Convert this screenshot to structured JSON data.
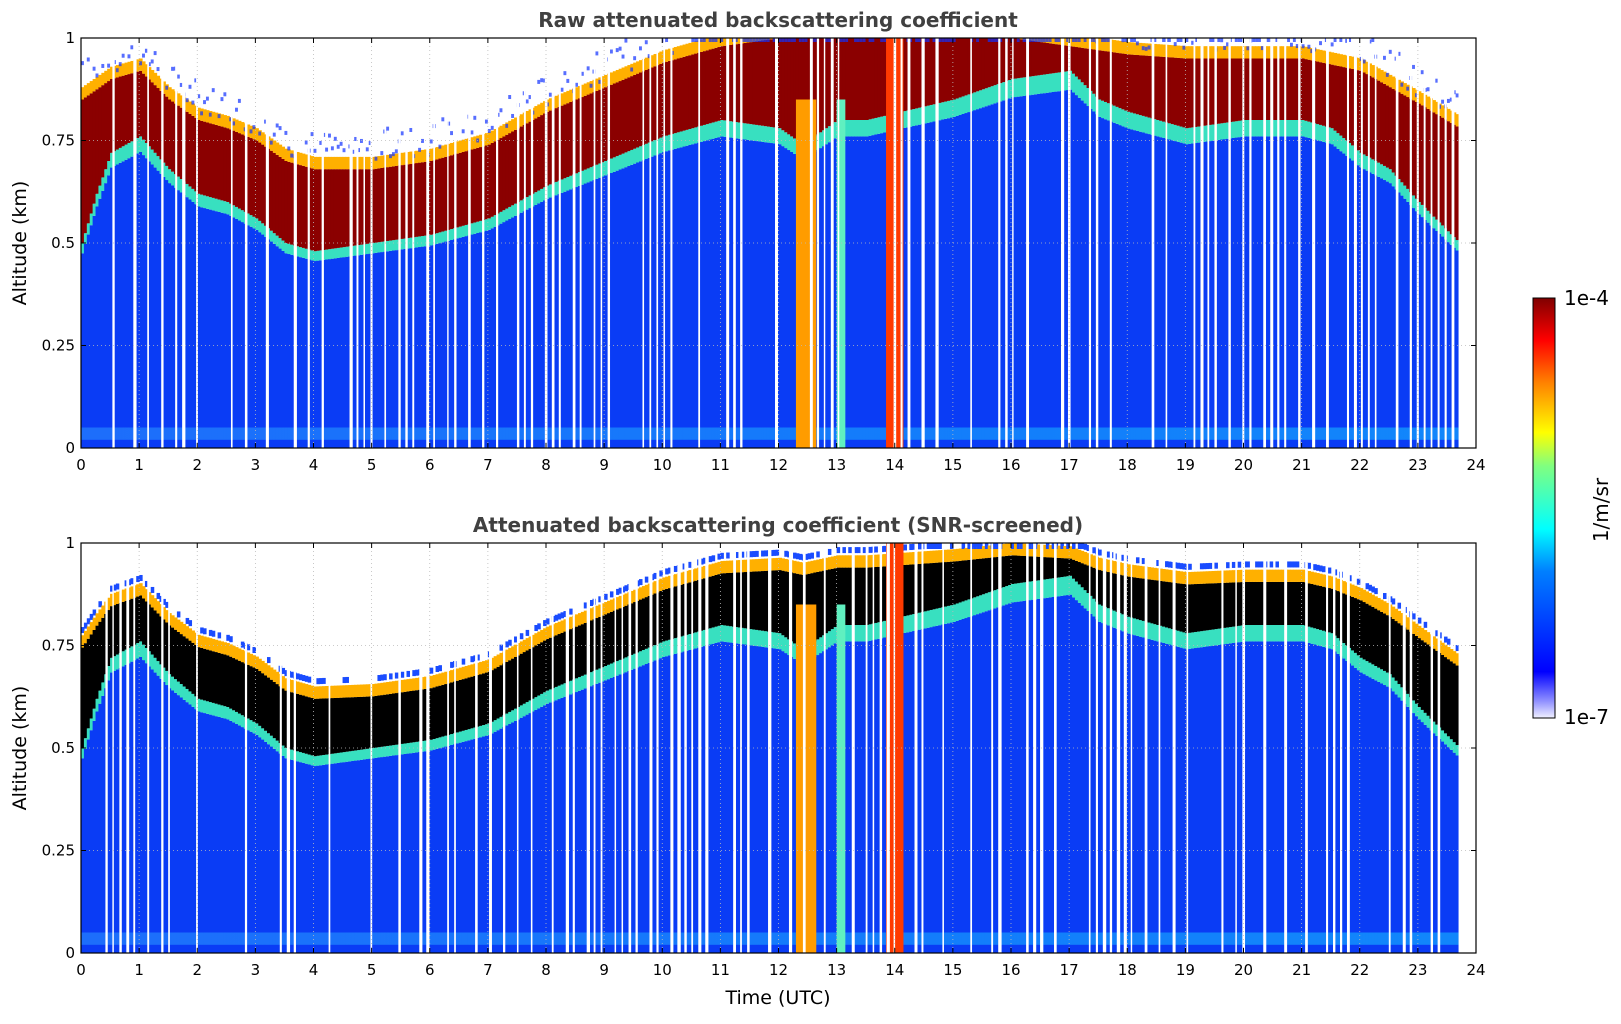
{
  "chart_data": [
    {
      "type": "heatmap",
      "title": "Raw attenuated backscattering coefficient",
      "xlabel": "",
      "ylabel": "Altitude (km)",
      "xlim": [
        0,
        24
      ],
      "ylim": [
        0,
        1
      ],
      "xticks": [
        "0",
        "1",
        "2",
        "3",
        "4",
        "5",
        "6",
        "7",
        "8",
        "9",
        "10",
        "11",
        "12",
        "13",
        "14",
        "15",
        "16",
        "17",
        "18",
        "19",
        "20",
        "21",
        "22",
        "23",
        "24"
      ],
      "yticks": [
        "0",
        "0.25",
        "0.5",
        "0.75",
        "1"
      ],
      "grid": true,
      "screened": false,
      "data_end_hour": 23.7,
      "cloud_base_km": [
        [
          0,
          0.5
        ],
        [
          0.25,
          0.62
        ],
        [
          0.5,
          0.72
        ],
        [
          1,
          0.76
        ],
        [
          1.5,
          0.68
        ],
        [
          2,
          0.62
        ],
        [
          2.5,
          0.6
        ],
        [
          3,
          0.56
        ],
        [
          3.5,
          0.5
        ],
        [
          4,
          0.48
        ],
        [
          5,
          0.5
        ],
        [
          6,
          0.52
        ],
        [
          7,
          0.56
        ],
        [
          8,
          0.64
        ],
        [
          9,
          0.7
        ],
        [
          10,
          0.76
        ],
        [
          11,
          0.8
        ],
        [
          12,
          0.78
        ],
        [
          12.4,
          0.74
        ],
        [
          13,
          0.8
        ],
        [
          13.5,
          0.8
        ],
        [
          15,
          0.85
        ],
        [
          16,
          0.9
        ],
        [
          17,
          0.92
        ],
        [
          17.5,
          0.85
        ],
        [
          18,
          0.82
        ],
        [
          19,
          0.78
        ],
        [
          20,
          0.8
        ],
        [
          21,
          0.8
        ],
        [
          21.5,
          0.78
        ],
        [
          22,
          0.72
        ],
        [
          22.5,
          0.68
        ],
        [
          23,
          0.6
        ],
        [
          23.7,
          0.5
        ]
      ],
      "cloud_top_km": [
        [
          0,
          0.85
        ],
        [
          0.5,
          0.9
        ],
        [
          1,
          0.92
        ],
        [
          1.5,
          0.85
        ],
        [
          2,
          0.8
        ],
        [
          2.5,
          0.78
        ],
        [
          3,
          0.75
        ],
        [
          3.5,
          0.7
        ],
        [
          4,
          0.68
        ],
        [
          5,
          0.68
        ],
        [
          6,
          0.7
        ],
        [
          7,
          0.74
        ],
        [
          8,
          0.82
        ],
        [
          9,
          0.88
        ],
        [
          10,
          0.94
        ],
        [
          11,
          0.98
        ],
        [
          12,
          1.0
        ],
        [
          13,
          1.0
        ],
        [
          16,
          1.0
        ],
        [
          17,
          0.98
        ],
        [
          18,
          0.96
        ],
        [
          19,
          0.95
        ],
        [
          20,
          0.95
        ],
        [
          21,
          0.95
        ],
        [
          22,
          0.92
        ],
        [
          22.5,
          0.88
        ],
        [
          23,
          0.84
        ],
        [
          23.7,
          0.78
        ]
      ],
      "precipitation_shafts_hour": [
        [
          12.3,
          12.65
        ],
        [
          13.0,
          13.15
        ],
        [
          13.85,
          14.15
        ]
      ],
      "colorbar": {
        "min": "1e-7",
        "max": "1e-4",
        "label": "1/m/sr",
        "scale": "log"
      }
    },
    {
      "type": "heatmap",
      "title": "Attenuated backscattering coefficient (SNR-screened)",
      "xlabel": "Time (UTC)",
      "ylabel": "Altitude (km)",
      "xlim": [
        0,
        24
      ],
      "ylim": [
        0,
        1
      ],
      "xticks": [
        "0",
        "1",
        "2",
        "3",
        "4",
        "5",
        "6",
        "7",
        "8",
        "9",
        "10",
        "11",
        "12",
        "13",
        "14",
        "15",
        "16",
        "17",
        "18",
        "19",
        "20",
        "21",
        "22",
        "23",
        "24"
      ],
      "yticks": [
        "0",
        "0.25",
        "0.5",
        "0.75",
        "1"
      ],
      "grid": true,
      "screened": true,
      "data_end_hour": 23.7,
      "cloud_base_km": [
        [
          0,
          0.5
        ],
        [
          0.25,
          0.62
        ],
        [
          0.5,
          0.72
        ],
        [
          1,
          0.76
        ],
        [
          1.5,
          0.68
        ],
        [
          2,
          0.62
        ],
        [
          2.5,
          0.6
        ],
        [
          3,
          0.56
        ],
        [
          3.5,
          0.5
        ],
        [
          4,
          0.48
        ],
        [
          5,
          0.5
        ],
        [
          6,
          0.52
        ],
        [
          7,
          0.56
        ],
        [
          8,
          0.64
        ],
        [
          9,
          0.7
        ],
        [
          10,
          0.76
        ],
        [
          11,
          0.8
        ],
        [
          12,
          0.78
        ],
        [
          12.4,
          0.74
        ],
        [
          13,
          0.8
        ],
        [
          13.5,
          0.8
        ],
        [
          15,
          0.85
        ],
        [
          16,
          0.9
        ],
        [
          17,
          0.92
        ],
        [
          17.5,
          0.85
        ],
        [
          18,
          0.82
        ],
        [
          19,
          0.78
        ],
        [
          20,
          0.8
        ],
        [
          21,
          0.8
        ],
        [
          21.5,
          0.78
        ],
        [
          22,
          0.72
        ],
        [
          22.5,
          0.68
        ],
        [
          23,
          0.6
        ],
        [
          23.7,
          0.5
        ]
      ],
      "cloud_top_km": [
        [
          0,
          0.85
        ],
        [
          0.5,
          0.9
        ],
        [
          1,
          0.92
        ],
        [
          1.5,
          0.85
        ],
        [
          2,
          0.8
        ],
        [
          2.5,
          0.78
        ],
        [
          3,
          0.75
        ],
        [
          3.5,
          0.7
        ],
        [
          4,
          0.68
        ],
        [
          5,
          0.68
        ],
        [
          6,
          0.7
        ],
        [
          7,
          0.74
        ],
        [
          8,
          0.82
        ],
        [
          9,
          0.88
        ],
        [
          10,
          0.94
        ],
        [
          11,
          0.98
        ],
        [
          12,
          1.0
        ],
        [
          13,
          1.0
        ],
        [
          16,
          1.0
        ],
        [
          17,
          0.98
        ],
        [
          18,
          0.96
        ],
        [
          19,
          0.95
        ],
        [
          20,
          0.95
        ],
        [
          21,
          0.95
        ],
        [
          22,
          0.92
        ],
        [
          22.5,
          0.88
        ],
        [
          23,
          0.84
        ],
        [
          23.7,
          0.78
        ]
      ],
      "precipitation_shafts_hour": [
        [
          12.3,
          12.65
        ],
        [
          13.0,
          13.15
        ],
        [
          13.85,
          14.15
        ]
      ],
      "colorbar": {
        "min": "1e-7",
        "max": "1e-4",
        "label": "1/m/sr",
        "scale": "log"
      }
    }
  ],
  "colorbar": {
    "max_label": "1e-4",
    "min_label": "1e-7",
    "unit_label": "1/m/sr"
  }
}
